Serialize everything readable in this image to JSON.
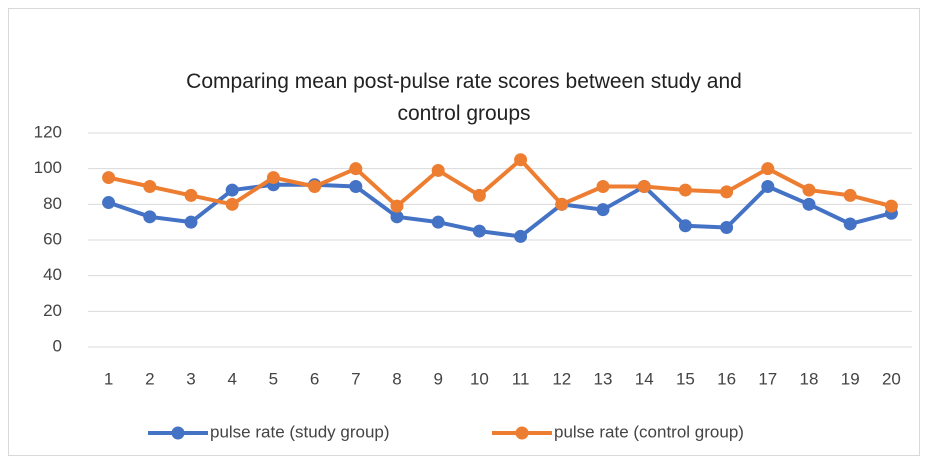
{
  "chart_data": {
    "type": "line",
    "title": "Comparing mean post-pulse rate scores between study and control groups",
    "categories": [
      "1",
      "2",
      "3",
      "4",
      "5",
      "6",
      "7",
      "8",
      "9",
      "10",
      "11",
      "12",
      "13",
      "14",
      "15",
      "16",
      "17",
      "18",
      "19",
      "20"
    ],
    "series": [
      {
        "name": "pulse rate (study group)",
        "color": "#4472c4",
        "values": [
          81,
          73,
          70,
          88,
          91,
          91,
          90,
          73,
          70,
          65,
          62,
          80,
          77,
          90,
          68,
          67,
          90,
          80,
          69,
          75
        ]
      },
      {
        "name": "pulse rate (control group)",
        "color": "#ed7d31",
        "values": [
          95,
          90,
          85,
          80,
          95,
          90,
          100,
          79,
          99,
          85,
          105,
          80,
          90,
          90,
          88,
          87,
          100,
          88,
          85,
          79
        ]
      }
    ],
    "ylim": [
      0,
      120
    ],
    "yticks": [
      0,
      20,
      40,
      60,
      80,
      100,
      120
    ],
    "grid": true,
    "legend": "bottom"
  }
}
